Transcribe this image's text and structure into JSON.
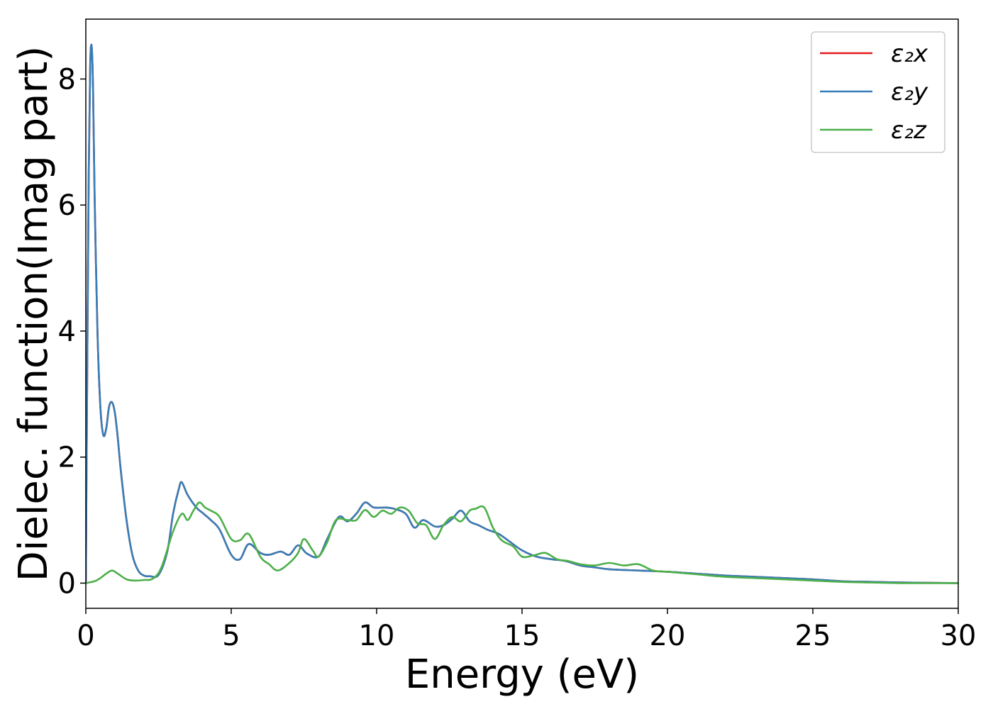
{
  "chart_data": {
    "type": "line",
    "title": "",
    "xlabel": "Energy (eV)",
    "ylabel": "Dielec. function(Imag part)",
    "xlim": [
      0,
      30
    ],
    "ylim": [
      -0.4,
      8.95
    ],
    "xticks": [
      0,
      5,
      10,
      15,
      20,
      25,
      30
    ],
    "yticks": [
      0,
      2,
      4,
      6,
      8
    ],
    "grid": false,
    "legend_position": "top-right",
    "series": [
      {
        "name": "ε₂x",
        "color": "#e41a1c",
        "x": [
          0,
          0.05,
          0.1,
          0.15,
          0.2,
          0.25,
          0.3,
          0.4,
          0.5,
          0.6,
          0.7,
          0.8,
          0.9,
          1.0,
          1.1,
          1.2,
          1.4,
          1.6,
          1.8,
          2.0,
          2.2,
          2.5,
          2.8,
          3.0,
          3.2,
          3.3,
          3.5,
          3.8,
          4.0,
          4.3,
          4.6,
          5.0,
          5.3,
          5.6,
          6.0,
          6.3,
          6.7,
          7.0,
          7.3,
          7.6,
          8.0,
          8.3,
          8.7,
          9.0,
          9.3,
          9.6,
          9.9,
          10.3,
          10.6,
          11.0,
          11.3,
          11.6,
          12.0,
          12.3,
          12.6,
          12.9,
          13.2,
          13.5,
          13.8,
          14.2,
          14.6,
          15.0,
          15.5,
          16.0,
          16.5,
          17.0,
          17.5,
          18.0,
          19.0,
          20.0,
          21.0,
          22.0,
          22.5,
          23.0,
          24.0,
          25.0,
          26.0,
          27.0,
          28.0,
          30.0
        ],
        "values": [
          0,
          3.5,
          6.5,
          8.2,
          8.52,
          7.8,
          6.2,
          4.0,
          2.8,
          2.35,
          2.45,
          2.8,
          2.87,
          2.7,
          2.3,
          1.8,
          1.0,
          0.45,
          0.2,
          0.12,
          0.11,
          0.13,
          0.5,
          1.1,
          1.5,
          1.6,
          1.4,
          1.2,
          1.12,
          1.0,
          0.85,
          0.45,
          0.38,
          0.62,
          0.48,
          0.45,
          0.5,
          0.45,
          0.6,
          0.47,
          0.42,
          0.7,
          1.05,
          0.98,
          1.1,
          1.28,
          1.2,
          1.2,
          1.18,
          1.1,
          0.88,
          1.0,
          0.9,
          0.92,
          1.02,
          1.15,
          0.98,
          0.92,
          0.85,
          0.78,
          0.65,
          0.52,
          0.42,
          0.38,
          0.35,
          0.28,
          0.25,
          0.22,
          0.2,
          0.18,
          0.15,
          0.12,
          0.11,
          0.1,
          0.08,
          0.06,
          0.03,
          0.02,
          0.01,
          0.0
        ]
      },
      {
        "name": "ε₂y",
        "color": "#377eb8",
        "x": [
          0,
          0.05,
          0.1,
          0.15,
          0.2,
          0.25,
          0.3,
          0.4,
          0.5,
          0.6,
          0.7,
          0.8,
          0.9,
          1.0,
          1.1,
          1.2,
          1.4,
          1.6,
          1.8,
          2.0,
          2.2,
          2.5,
          2.8,
          3.0,
          3.2,
          3.3,
          3.5,
          3.8,
          4.0,
          4.3,
          4.6,
          5.0,
          5.3,
          5.6,
          6.0,
          6.3,
          6.7,
          7.0,
          7.3,
          7.6,
          8.0,
          8.3,
          8.7,
          9.0,
          9.3,
          9.6,
          9.9,
          10.3,
          10.6,
          11.0,
          11.3,
          11.6,
          12.0,
          12.3,
          12.6,
          12.9,
          13.2,
          13.5,
          13.8,
          14.2,
          14.6,
          15.0,
          15.5,
          16.0,
          16.5,
          17.0,
          17.5,
          18.0,
          19.0,
          20.0,
          21.0,
          22.0,
          22.5,
          23.0,
          24.0,
          25.0,
          26.0,
          27.0,
          28.0,
          30.0
        ],
        "values": [
          0,
          3.5,
          6.5,
          8.2,
          8.52,
          7.8,
          6.2,
          4.0,
          2.8,
          2.35,
          2.45,
          2.8,
          2.87,
          2.7,
          2.3,
          1.8,
          1.0,
          0.45,
          0.2,
          0.12,
          0.11,
          0.13,
          0.5,
          1.1,
          1.5,
          1.6,
          1.4,
          1.2,
          1.12,
          1.0,
          0.85,
          0.45,
          0.38,
          0.62,
          0.48,
          0.45,
          0.5,
          0.45,
          0.6,
          0.47,
          0.42,
          0.7,
          1.05,
          0.98,
          1.1,
          1.28,
          1.2,
          1.2,
          1.18,
          1.1,
          0.88,
          1.0,
          0.9,
          0.92,
          1.02,
          1.15,
          0.98,
          0.92,
          0.85,
          0.78,
          0.65,
          0.52,
          0.42,
          0.38,
          0.35,
          0.28,
          0.25,
          0.22,
          0.2,
          0.18,
          0.15,
          0.12,
          0.11,
          0.1,
          0.08,
          0.06,
          0.03,
          0.02,
          0.01,
          0.0
        ]
      },
      {
        "name": "ε₂z",
        "color": "#4daf4a",
        "x": [
          0,
          0.3,
          0.5,
          0.7,
          0.9,
          1.1,
          1.4,
          1.7,
          2.0,
          2.3,
          2.6,
          3.0,
          3.3,
          3.5,
          3.7,
          3.9,
          4.1,
          4.3,
          4.6,
          5.0,
          5.3,
          5.6,
          6.0,
          6.3,
          6.6,
          7.0,
          7.3,
          7.5,
          7.8,
          8.0,
          8.3,
          8.6,
          9.0,
          9.3,
          9.6,
          9.9,
          10.2,
          10.5,
          10.8,
          11.1,
          11.4,
          11.7,
          12.0,
          12.3,
          12.6,
          12.9,
          13.2,
          13.4,
          13.7,
          14.0,
          14.3,
          14.7,
          15.0,
          15.4,
          15.8,
          16.2,
          16.6,
          17.0,
          17.5,
          18.0,
          18.5,
          19.0,
          19.5,
          20.0,
          21.0,
          22.0,
          23.0,
          24.0,
          25.0,
          26.0,
          27.0,
          28.0,
          30.0
        ],
        "values": [
          0.0,
          0.03,
          0.08,
          0.15,
          0.2,
          0.15,
          0.06,
          0.04,
          0.05,
          0.07,
          0.25,
          0.82,
          1.1,
          1.0,
          1.15,
          1.28,
          1.2,
          1.15,
          1.05,
          0.7,
          0.68,
          0.78,
          0.42,
          0.3,
          0.2,
          0.32,
          0.48,
          0.7,
          0.52,
          0.42,
          0.65,
          1.0,
          1.0,
          1.0,
          1.16,
          1.05,
          1.15,
          1.1,
          1.2,
          1.15,
          0.95,
          0.92,
          0.7,
          0.92,
          1.05,
          0.98,
          1.15,
          1.18,
          1.2,
          0.88,
          0.68,
          0.58,
          0.42,
          0.44,
          0.48,
          0.38,
          0.35,
          0.3,
          0.28,
          0.32,
          0.28,
          0.3,
          0.2,
          0.18,
          0.14,
          0.1,
          0.08,
          0.06,
          0.04,
          0.02,
          0.01,
          0.0,
          0.0
        ]
      }
    ]
  }
}
